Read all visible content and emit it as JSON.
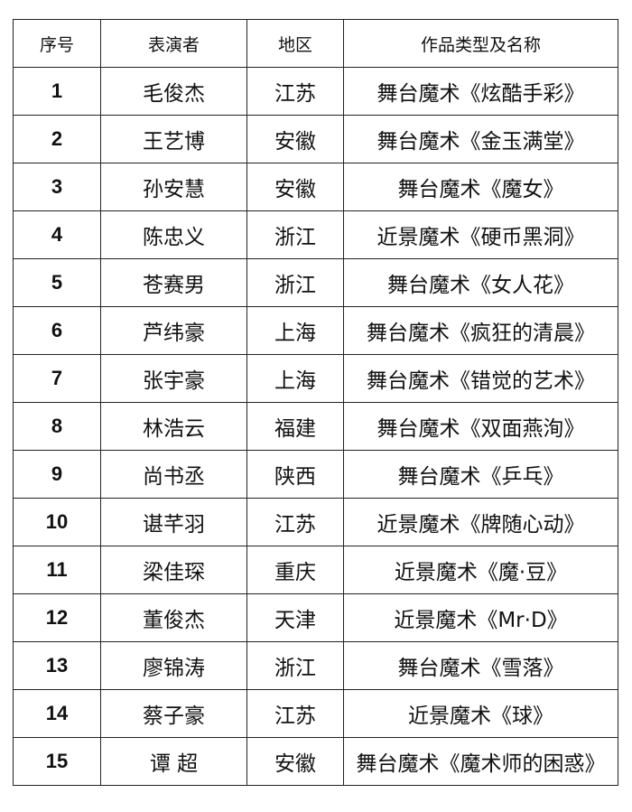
{
  "table": {
    "headers": [
      "序号",
      "表演者",
      "地区",
      "作品类型及名称"
    ],
    "rows": [
      [
        "1",
        "毛俊杰",
        "江苏",
        "舞台魔术《炫酷手彩》"
      ],
      [
        "2",
        "王艺博",
        "安徽",
        "舞台魔术《金玉满堂》"
      ],
      [
        "3",
        "孙安慧",
        "安徽",
        "舞台魔术《魔女》"
      ],
      [
        "4",
        "陈忠义",
        "浙江",
        "近景魔术《硬币黑洞》"
      ],
      [
        "5",
        "苍赛男",
        "浙江",
        "舞台魔术《女人花》"
      ],
      [
        "6",
        "芦纬豪",
        "上海",
        "舞台魔术《疯狂的清晨》"
      ],
      [
        "7",
        "张宇豪",
        "上海",
        "舞台魔术《错觉的艺术》"
      ],
      [
        "8",
        "林浩云",
        "福建",
        "舞台魔术《双面燕洵》"
      ],
      [
        "9",
        "尚书丞",
        "陕西",
        "舞台魔术《乒乓》"
      ],
      [
        "10",
        "谌芊羽",
        "江苏",
        "近景魔术《牌随心动》"
      ],
      [
        "11",
        "梁佳琛",
        "重庆",
        "近景魔术《魔·豆》"
      ],
      [
        "12",
        "董俊杰",
        "天津",
        "近景魔术《Mr·D》"
      ],
      [
        "13",
        "廖锦涛",
        "浙江",
        "舞台魔术《雪落》"
      ],
      [
        "14",
        "蔡子豪",
        "江苏",
        "近景魔术《球》"
      ],
      [
        "15",
        "谭 超",
        "安徽",
        "舞台魔术《魔术师的困惑》"
      ]
    ]
  }
}
